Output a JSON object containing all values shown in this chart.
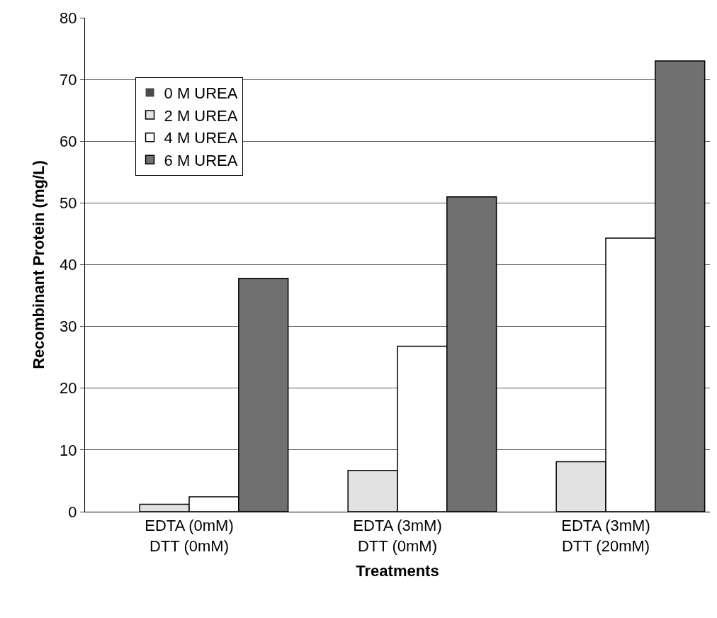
{
  "chart_data": {
    "type": "bar",
    "xlabel": "Treatments",
    "ylabel": "Recombinant Protein (mg/L)",
    "categories": [
      "EDTA (0mM)\nDTT (0mM)",
      "EDTA (3mM)\nDTT (0mM)",
      "EDTA (3mM)\nDTT (20mM)"
    ],
    "series": [
      {
        "name": "0 M UREA",
        "color": "#4a4a4a",
        "values": [
          0,
          0,
          0
        ]
      },
      {
        "name": "2 M UREA",
        "color": "#e2e2e2",
        "values": [
          1.2,
          6.7,
          8.1
        ]
      },
      {
        "name": "4 M UREA",
        "color": "#ffffff",
        "values": [
          2.4,
          26.8,
          44.3
        ]
      },
      {
        "name": "6 M UREA",
        "color": "#707070",
        "values": [
          37.8,
          51,
          73
        ]
      }
    ],
    "ylim": [
      0,
      80
    ],
    "yticks": [
      0,
      10,
      20,
      30,
      40,
      50,
      60,
      70,
      80
    ],
    "grid": "y",
    "legend": "top left"
  }
}
